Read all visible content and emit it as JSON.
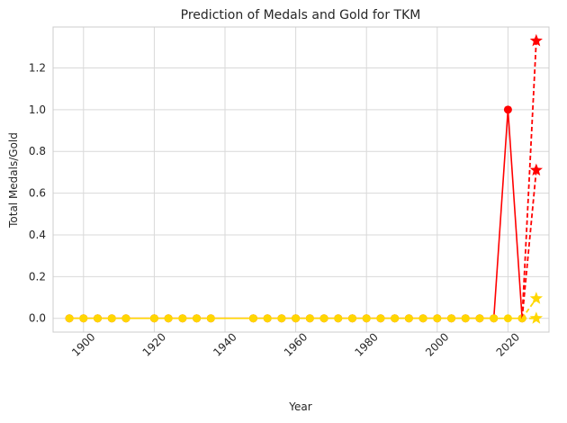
{
  "chart_data": {
    "type": "line",
    "title": "Prediction of Medals and Gold for TKM",
    "xlabel": "Year",
    "ylabel": "Total Medals/Gold",
    "xlim": [
      1891.4,
      2031.6
    ],
    "ylim": [
      -0.066,
      1.396
    ],
    "xticks": [
      1900,
      1920,
      1940,
      1960,
      1980,
      2000,
      2020
    ],
    "yticks": [
      0.0,
      0.2,
      0.4,
      0.6,
      0.8,
      1.0,
      1.2
    ],
    "ytick_labels": [
      "0.0",
      "0.2",
      "0.4",
      "0.6",
      "0.8",
      "1.0",
      "1.2"
    ],
    "grid": true,
    "colors": {
      "medals": "#ff0000",
      "gold": "#ffd700",
      "background": "#ffffff",
      "grid": "#d9d9d9",
      "frame": "#cccccc"
    },
    "x": [
      1896,
      1900,
      1904,
      1908,
      1912,
      1920,
      1924,
      1928,
      1932,
      1936,
      1948,
      1952,
      1956,
      1960,
      1964,
      1968,
      1972,
      1976,
      1980,
      1984,
      1988,
      1992,
      1996,
      2000,
      2004,
      2008,
      2012,
      2016,
      2020,
      2024
    ],
    "series": [
      {
        "key": "medals",
        "color": "#ff0000",
        "marker": "circle",
        "values": [
          0,
          0,
          0,
          0,
          0,
          0,
          0,
          0,
          0,
          0,
          0,
          0,
          0,
          0,
          0,
          0,
          0,
          0,
          0,
          0,
          0,
          0,
          0,
          0,
          0,
          0,
          0,
          0,
          1,
          0
        ]
      },
      {
        "key": "gold",
        "color": "#ffd700",
        "marker": "circle",
        "values": [
          0,
          0,
          0,
          0,
          0,
          0,
          0,
          0,
          0,
          0,
          0,
          0,
          0,
          0,
          0,
          0,
          0,
          0,
          0,
          0,
          0,
          0,
          0,
          0,
          0,
          0,
          0,
          0,
          0,
          0
        ]
      }
    ],
    "predictions": [
      {
        "key": "medals",
        "color": "#ff0000",
        "marker": "star",
        "from": [
          2024,
          0
        ],
        "points": [
          [
            2028,
            1.33
          ],
          [
            2028,
            0.71
          ]
        ]
      },
      {
        "key": "gold",
        "color": "#ffd700",
        "marker": "star",
        "from": [
          2024,
          0
        ],
        "points": [
          [
            2028,
            0.095
          ],
          [
            2028,
            0.0
          ]
        ]
      }
    ]
  }
}
